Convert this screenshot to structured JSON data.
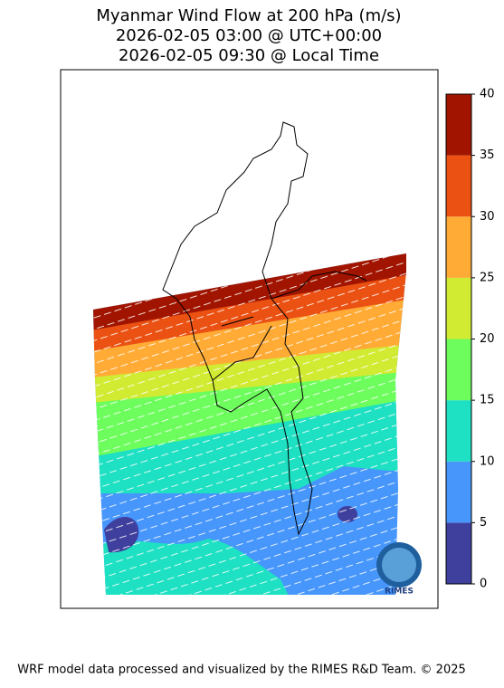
{
  "map": {
    "title": [
      "Myanmar Wind Flow at 200 hPa (m/s)",
      "2026-02-05 03:00 @ UTC+00:00",
      "2026-02-05 09:30 @ Local Time"
    ],
    "colorbar": {
      "lim": [
        0,
        40
      ],
      "ticks": [
        0,
        5,
        10,
        15,
        20,
        25,
        30,
        35,
        40
      ],
      "colors": [
        "#3f3f9e",
        "#4696fb",
        "#1ee0c2",
        "#6dfd5c",
        "#d1eb32",
        "#ffab36",
        "#ea5112",
        "#a11500"
      ]
    },
    "logo_text": "RIMES",
    "footer": "WRF model data processed and visualized by the RIMES R&D Team. © 2025"
  }
}
